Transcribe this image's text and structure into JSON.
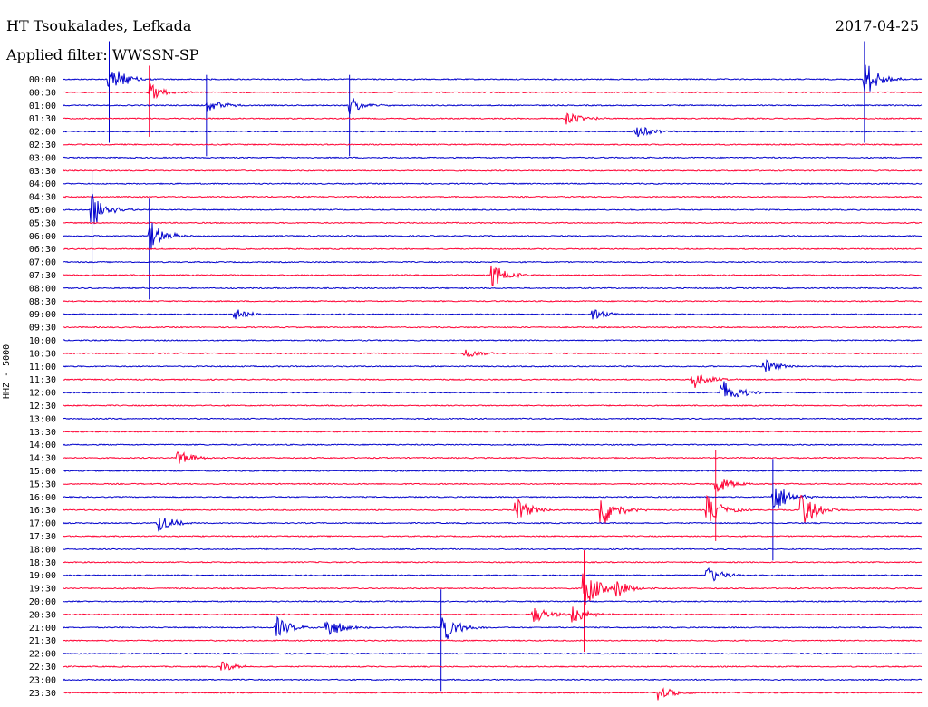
{
  "header": {
    "station": "HT Tsoukalades, Lefkada",
    "filter": "Applied filter: WWSSN-SP",
    "date": "2017-04-25"
  },
  "chart_data": {
    "type": "helicorder",
    "ylabel": "HHZ - 5000",
    "line_colors": [
      "#0000cc",
      "#ff0033"
    ],
    "row_labels": [
      "00:00",
      "00:30",
      "01:00",
      "01:30",
      "02:00",
      "02:30",
      "03:00",
      "03:30",
      "04:00",
      "04:30",
      "05:00",
      "05:30",
      "06:00",
      "06:30",
      "07:00",
      "07:30",
      "08:00",
      "08:30",
      "09:00",
      "09:30",
      "10:00",
      "10:30",
      "11:00",
      "11:30",
      "12:00",
      "12:30",
      "13:00",
      "13:30",
      "14:00",
      "14:30",
      "15:00",
      "15:30",
      "16:00",
      "16:30",
      "17:00",
      "17:30",
      "18:00",
      "18:30",
      "19:00",
      "19:30",
      "20:00",
      "20:30",
      "21:00",
      "21:30",
      "22:00",
      "22:30",
      "23:00",
      "23:30"
    ],
    "minutes_per_row": 30,
    "events": [
      {
        "row": 0,
        "minute": 1.6,
        "amp": 0.9,
        "spike": 1
      },
      {
        "row": 1,
        "minute": 3.0,
        "amp": 0.5,
        "spike": 0.7
      },
      {
        "row": 2,
        "minute": 5.0,
        "amp": 0.4,
        "spike": 0.8
      },
      {
        "row": 2,
        "minute": 10.0,
        "amp": 0.5,
        "spike": 0.8
      },
      {
        "row": 0,
        "minute": 28.0,
        "amp": 1.0,
        "spike": 1
      },
      {
        "row": 3,
        "minute": 17.6,
        "amp": 0.4
      },
      {
        "row": 4,
        "minute": 20.0,
        "amp": 0.4
      },
      {
        "row": 10,
        "minute": 1.0,
        "amp": 1.0,
        "spike": 1
      },
      {
        "row": 12,
        "minute": 3.0,
        "amp": 0.8,
        "spike": 1
      },
      {
        "row": 15,
        "minute": 15.0,
        "amp": 0.6
      },
      {
        "row": 18,
        "minute": 6.0,
        "amp": 0.3
      },
      {
        "row": 18,
        "minute": 18.5,
        "amp": 0.3
      },
      {
        "row": 21,
        "minute": 14.0,
        "amp": 0.3
      },
      {
        "row": 22,
        "minute": 24.5,
        "amp": 0.4
      },
      {
        "row": 23,
        "minute": 22.0,
        "amp": 0.5
      },
      {
        "row": 24,
        "minute": 23.0,
        "amp": 0.9
      },
      {
        "row": 29,
        "minute": 4.0,
        "amp": 0.4
      },
      {
        "row": 31,
        "minute": 22.8,
        "amp": 0.6,
        "spike": 0.9
      },
      {
        "row": 32,
        "minute": 24.8,
        "amp": 1.0,
        "spike": 1
      },
      {
        "row": 33,
        "minute": 15.8,
        "amp": 0.7
      },
      {
        "row": 33,
        "minute": 18.8,
        "amp": 1.0
      },
      {
        "row": 33,
        "minute": 22.5,
        "amp": 0.8
      },
      {
        "row": 33,
        "minute": 25.8,
        "amp": 1.0
      },
      {
        "row": 34,
        "minute": 3.3,
        "amp": 0.5
      },
      {
        "row": 38,
        "minute": 22.5,
        "amp": 0.5
      },
      {
        "row": 39,
        "minute": 19.3,
        "amp": 0.5
      },
      {
        "row": 39,
        "minute": 18.2,
        "amp": 1.0,
        "spike": 1
      },
      {
        "row": 41,
        "minute": 16.4,
        "amp": 0.5
      },
      {
        "row": 41,
        "minute": 17.8,
        "amp": 0.5
      },
      {
        "row": 42,
        "minute": 7.4,
        "amp": 0.6
      },
      {
        "row": 42,
        "minute": 9.2,
        "amp": 0.6
      },
      {
        "row": 42,
        "minute": 13.2,
        "amp": 1.0,
        "spike": 1
      },
      {
        "row": 45,
        "minute": 5.5,
        "amp": 0.3
      },
      {
        "row": 47,
        "minute": 20.8,
        "amp": 0.4
      }
    ]
  }
}
